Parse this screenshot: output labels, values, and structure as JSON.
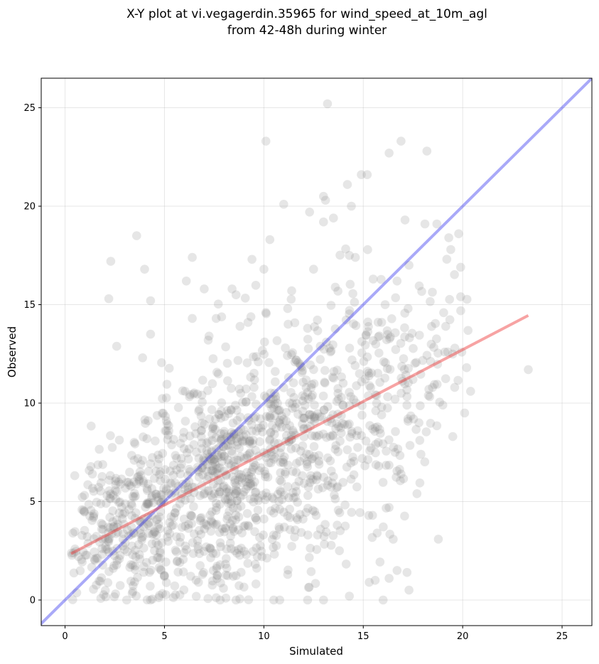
{
  "chart_data": {
    "type": "scatter",
    "title_line1": "X-Y plot at vi.vegagerdin.35965 for wind_speed_at_10m_agl",
    "title_line2": "from 42-48h during winter",
    "xlabel": "Simulated",
    "ylabel": "Observed",
    "xlim": [
      -1.2,
      26.5
    ],
    "ylim": [
      -1.3,
      26.5
    ],
    "x_ticks": [
      0,
      5,
      10,
      15,
      20,
      25
    ],
    "y_ticks": [
      0,
      5,
      10,
      15,
      20,
      25
    ],
    "x_tick_labels": [
      "0",
      "5",
      "10",
      "15",
      "20",
      "25"
    ],
    "y_tick_labels": [
      "0",
      "5",
      "10",
      "15",
      "20",
      "25"
    ],
    "grid": true,
    "point_color": "#808080",
    "identity_line": {
      "color": "#3333ee",
      "from": [
        -1.2,
        -1.2
      ],
      "to": [
        26.5,
        26.5
      ]
    },
    "regression_line": {
      "color": "#ee3333",
      "from": [
        0.3,
        2.35
      ],
      "to": [
        23.3,
        14.45
      ]
    },
    "outliers": [
      [
        13.2,
        25.2
      ],
      [
        10.1,
        23.3
      ],
      [
        16.9,
        23.3
      ],
      [
        18.2,
        22.8
      ],
      [
        16.3,
        22.7
      ],
      [
        15.2,
        21.6
      ],
      [
        14.9,
        21.6
      ],
      [
        14.2,
        21.1
      ],
      [
        13.0,
        20.5
      ],
      [
        14.4,
        20.0
      ],
      [
        11.0,
        20.1
      ],
      [
        13.1,
        20.3
      ],
      [
        12.3,
        19.7
      ],
      [
        13.0,
        19.2
      ],
      [
        13.5,
        19.4
      ],
      [
        18.1,
        19.1
      ],
      [
        17.1,
        19.3
      ],
      [
        18.7,
        19.1
      ],
      [
        3.6,
        18.5
      ],
      [
        19.8,
        18.6
      ],
      [
        10.3,
        18.3
      ],
      [
        19.3,
        18.4
      ],
      [
        19.4,
        17.8
      ],
      [
        2.3,
        17.2
      ],
      [
        6.4,
        17.4
      ],
      [
        9.4,
        17.3
      ],
      [
        4.0,
        16.8
      ],
      [
        10.0,
        16.8
      ],
      [
        14.3,
        17.5
      ],
      [
        14.6,
        17.4
      ],
      [
        17.3,
        17.0
      ],
      [
        19.9,
        16.9
      ],
      [
        6.1,
        16.2
      ],
      [
        12.5,
        16.8
      ],
      [
        15.5,
        16.3
      ],
      [
        7.0,
        15.8
      ],
      [
        8.4,
        15.8
      ],
      [
        8.6,
        15.5
      ],
      [
        2.2,
        15.3
      ],
      [
        4.3,
        15.2
      ],
      [
        11.4,
        15.7
      ],
      [
        16.7,
        16.2
      ],
      [
        19.9,
        15.4
      ],
      [
        6.4,
        14.3
      ],
      [
        7.6,
        14.3
      ],
      [
        9.2,
        14.1
      ],
      [
        10.1,
        14.6
      ],
      [
        11.2,
        14.8
      ],
      [
        16.1,
        15.0
      ],
      [
        4.3,
        13.5
      ],
      [
        3.9,
        12.3
      ],
      [
        7.2,
        13.2
      ],
      [
        8.8,
        13.9
      ],
      [
        12.2,
        13.8
      ],
      [
        20.2,
        11.8
      ],
      [
        20.4,
        10.6
      ],
      [
        19.6,
        10.8
      ],
      [
        18.3,
        10.7
      ],
      [
        20.1,
        9.5
      ],
      [
        19.5,
        8.3
      ],
      [
        19.0,
        9.9
      ],
      [
        23.3,
        11.7
      ],
      [
        17.9,
        7.4
      ],
      [
        17.7,
        5.4
      ],
      [
        16.6,
        7.5
      ],
      [
        16.3,
        4.7
      ],
      [
        15.7,
        3.4
      ],
      [
        16.7,
        1.5
      ],
      [
        17.3,
        0.5
      ],
      [
        16.3,
        1.1
      ],
      [
        16.0,
        0.0
      ],
      [
        15.3,
        0.9
      ],
      [
        14.3,
        0.2
      ],
      [
        13.0,
        0.0
      ],
      [
        12.2,
        0.0
      ],
      [
        10.8,
        0.0
      ],
      [
        10.5,
        0.0
      ],
      [
        8.6,
        0.0
      ],
      [
        7.8,
        0.0
      ],
      [
        4.3,
        0.0
      ],
      [
        3.1,
        0.0
      ],
      [
        13.8,
        2.5
      ],
      [
        12.7,
        3.3
      ],
      [
        11.2,
        1.3
      ],
      [
        9.9,
        2.2
      ],
      [
        17.2,
        1.4
      ],
      [
        15.6,
        1.0
      ],
      [
        16.9,
        6.4
      ],
      [
        17.8,
        9.0
      ],
      [
        17.5,
        11.2
      ]
    ],
    "clusters": [
      {
        "cx": 2.0,
        "cy": 3.5,
        "sx": 1.3,
        "sy": 1.9,
        "n": 170
      },
      {
        "cx": 4.5,
        "cy": 5.2,
        "sx": 1.5,
        "sy": 2.3,
        "n": 200
      },
      {
        "cx": 7.2,
        "cy": 5.8,
        "sx": 1.4,
        "sy": 2.8,
        "n": 220
      },
      {
        "cx": 8.0,
        "cy": 7.4,
        "sx": 0.9,
        "sy": 1.2,
        "n": 80
      },
      {
        "cx": 10.0,
        "cy": 7.6,
        "sx": 1.4,
        "sy": 2.7,
        "n": 210
      },
      {
        "cx": 12.4,
        "cy": 8.6,
        "sx": 1.4,
        "sy": 3.0,
        "n": 170
      },
      {
        "cx": 14.6,
        "cy": 10.0,
        "sx": 1.4,
        "sy": 3.2,
        "n": 140
      },
      {
        "cx": 16.9,
        "cy": 11.6,
        "sx": 1.4,
        "sy": 2.6,
        "n": 70
      },
      {
        "cx": 18.9,
        "cy": 12.8,
        "sx": 0.9,
        "sy": 2.2,
        "n": 30
      },
      {
        "cx": 6.5,
        "cy": 2.0,
        "sx": 1.8,
        "sy": 1.2,
        "n": 60
      },
      {
        "cx": 11.5,
        "cy": 4.0,
        "sx": 2.2,
        "sy": 1.6,
        "n": 50
      }
    ]
  }
}
